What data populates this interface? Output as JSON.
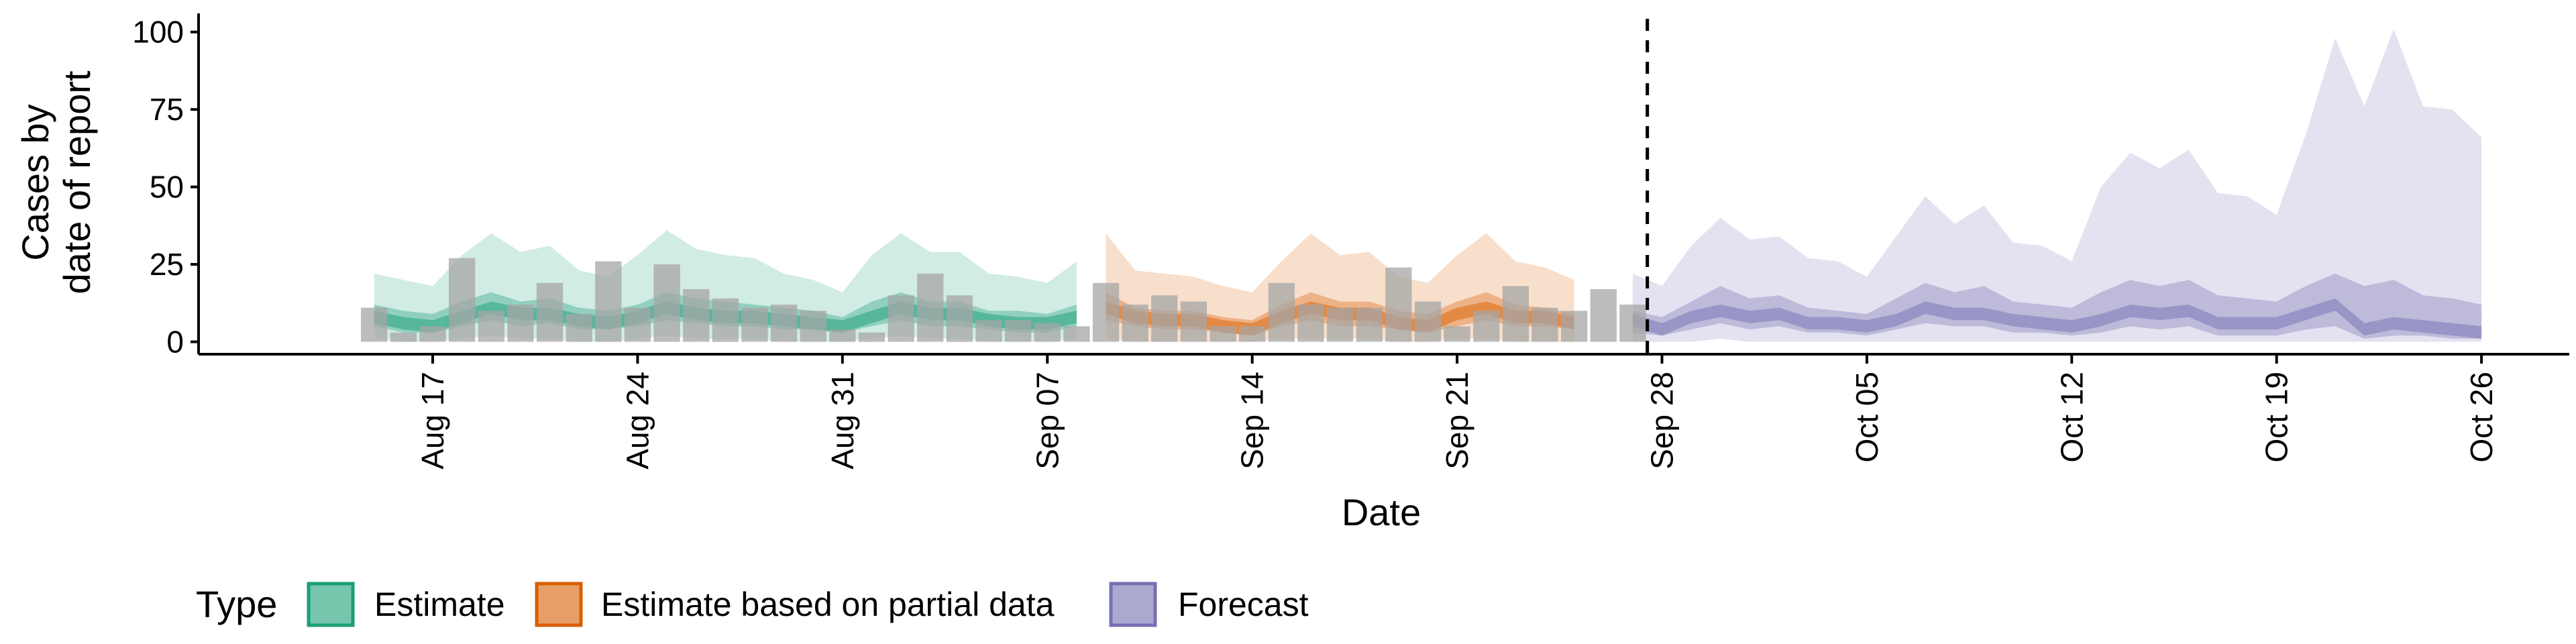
{
  "chart_data": {
    "type": "area",
    "title": "",
    "xlabel": "Date",
    "ylabel_lines": [
      "Cases by",
      "date of report"
    ],
    "ylim": [
      -4,
      106
    ],
    "y_ticks": [
      0,
      25,
      50,
      75,
      100
    ],
    "x_domain_days": [
      -6,
      75
    ],
    "x_ticks": [
      {
        "day": 2,
        "label": "Aug 17"
      },
      {
        "day": 9,
        "label": "Aug 24"
      },
      {
        "day": 16,
        "label": "Aug 31"
      },
      {
        "day": 23,
        "label": "Sep 07"
      },
      {
        "day": 30,
        "label": "Sep 14"
      },
      {
        "day": 37,
        "label": "Sep 21"
      },
      {
        "day": 44,
        "label": "Sep 28"
      },
      {
        "day": 51,
        "label": "Oct 05"
      },
      {
        "day": 58,
        "label": "Oct 12"
      },
      {
        "day": 65,
        "label": "Oct 19"
      },
      {
        "day": 72,
        "label": "Oct 26"
      }
    ],
    "forecast_boundary_day": 43,
    "start_date": "Aug 15",
    "observed_cases": [
      11,
      3,
      5,
      27,
      10,
      12,
      19,
      9,
      26,
      11,
      25,
      17,
      14,
      11,
      12,
      10,
      4,
      3,
      15,
      22,
      15,
      7,
      7,
      6,
      5,
      19,
      12,
      15,
      13,
      5,
      5,
      19,
      12,
      11,
      11,
      24,
      13,
      5,
      10,
      18,
      11,
      10,
      17,
      12
    ],
    "legend": {
      "title": "Type",
      "items": [
        {
          "key": "estimate",
          "label": "Estimate"
        },
        {
          "key": "partial",
          "label": "Estimate based on partial data"
        },
        {
          "key": "forecast",
          "label": "Forecast"
        }
      ]
    },
    "series": [
      {
        "name": "Estimate",
        "key": "estimate",
        "start_day": 0,
        "upper90": [
          22,
          20,
          18,
          28,
          35,
          29,
          31,
          23,
          21,
          28,
          36,
          30,
          28,
          27,
          22,
          20,
          16,
          28,
          35,
          29,
          29,
          22,
          21,
          19,
          26
        ],
        "upper50": [
          12,
          10,
          9,
          13,
          16,
          13,
          14,
          11,
          10,
          12,
          16,
          14,
          13,
          12,
          11,
          10,
          8,
          13,
          16,
          13,
          13,
          10,
          10,
          9,
          12
        ],
        "median": [
          8,
          6,
          5,
          8,
          11,
          9,
          9,
          7,
          6,
          8,
          11,
          9,
          8,
          8,
          7,
          6,
          5,
          8,
          11,
          9,
          9,
          7,
          6,
          6,
          8
        ],
        "lower50": [
          5,
          3,
          3,
          5,
          7,
          5,
          6,
          4,
          4,
          5,
          7,
          6,
          5,
          5,
          4,
          4,
          3,
          5,
          7,
          5,
          5,
          4,
          3,
          3,
          5
        ],
        "lower90": [
          1,
          0,
          0,
          1,
          2,
          1,
          1,
          0,
          0,
          1,
          2,
          1,
          1,
          1,
          0,
          0,
          0,
          1,
          2,
          1,
          1,
          0,
          0,
          0,
          1
        ]
      },
      {
        "name": "Estimate based on partial data",
        "key": "partial",
        "start_day": 25,
        "upper90": [
          35,
          23,
          22,
          21,
          18,
          16,
          26,
          35,
          28,
          29,
          21,
          19,
          28,
          35,
          26,
          24,
          20
        ],
        "upper50": [
          16,
          11,
          10,
          10,
          8,
          7,
          12,
          16,
          13,
          13,
          10,
          9,
          13,
          16,
          12,
          11,
          9
        ],
        "median": [
          11,
          8,
          7,
          7,
          5,
          4,
          8,
          11,
          9,
          9,
          6,
          5,
          9,
          11,
          8,
          8,
          6
        ],
        "lower50": [
          7,
          5,
          4,
          4,
          3,
          2,
          5,
          7,
          5,
          5,
          4,
          3,
          5,
          7,
          5,
          5,
          4
        ],
        "lower90": [
          1,
          0,
          0,
          0,
          0,
          0,
          1,
          1,
          1,
          1,
          0,
          0,
          1,
          1,
          0,
          0,
          0
        ]
      },
      {
        "name": "Forecast",
        "key": "forecast",
        "start_day": 43,
        "upper90": [
          22,
          18,
          31,
          40,
          33,
          34,
          27,
          26,
          21,
          34,
          47,
          38,
          44,
          32,
          31,
          26,
          50,
          61,
          56,
          62,
          48,
          47,
          41,
          67,
          98,
          76,
          101,
          76,
          75,
          66
        ],
        "upper50": [
          10,
          8,
          13,
          18,
          14,
          15,
          11,
          10,
          9,
          14,
          19,
          16,
          18,
          13,
          12,
          11,
          16,
          20,
          18,
          20,
          15,
          14,
          13,
          18,
          22,
          18,
          20,
          15,
          14,
          12
        ],
        "median": [
          7,
          4,
          8,
          10,
          8,
          9,
          6,
          6,
          5,
          7,
          11,
          9,
          9,
          7,
          6,
          5,
          7,
          10,
          9,
          10,
          6,
          6,
          6,
          9,
          12,
          4,
          6,
          5,
          4,
          3
        ],
        "lower50": [
          3,
          2,
          4,
          6,
          4,
          5,
          3,
          3,
          2,
          4,
          6,
          5,
          5,
          3,
          3,
          2,
          3,
          5,
          4,
          5,
          2,
          2,
          2,
          4,
          5,
          1,
          2,
          2,
          1,
          1
        ],
        "lower90": [
          0,
          0,
          0,
          1,
          0,
          0,
          0,
          0,
          0,
          0,
          0,
          0,
          0,
          0,
          0,
          0,
          0,
          0,
          0,
          0,
          0,
          0,
          0,
          0,
          0,
          0,
          0,
          0,
          0,
          0
        ]
      }
    ],
    "colors": {
      "estimate": "#1b9e77",
      "partial": "#d95f02",
      "forecast": "#7570b3",
      "bars": "#a6a6a6",
      "axis": "#000000"
    }
  }
}
